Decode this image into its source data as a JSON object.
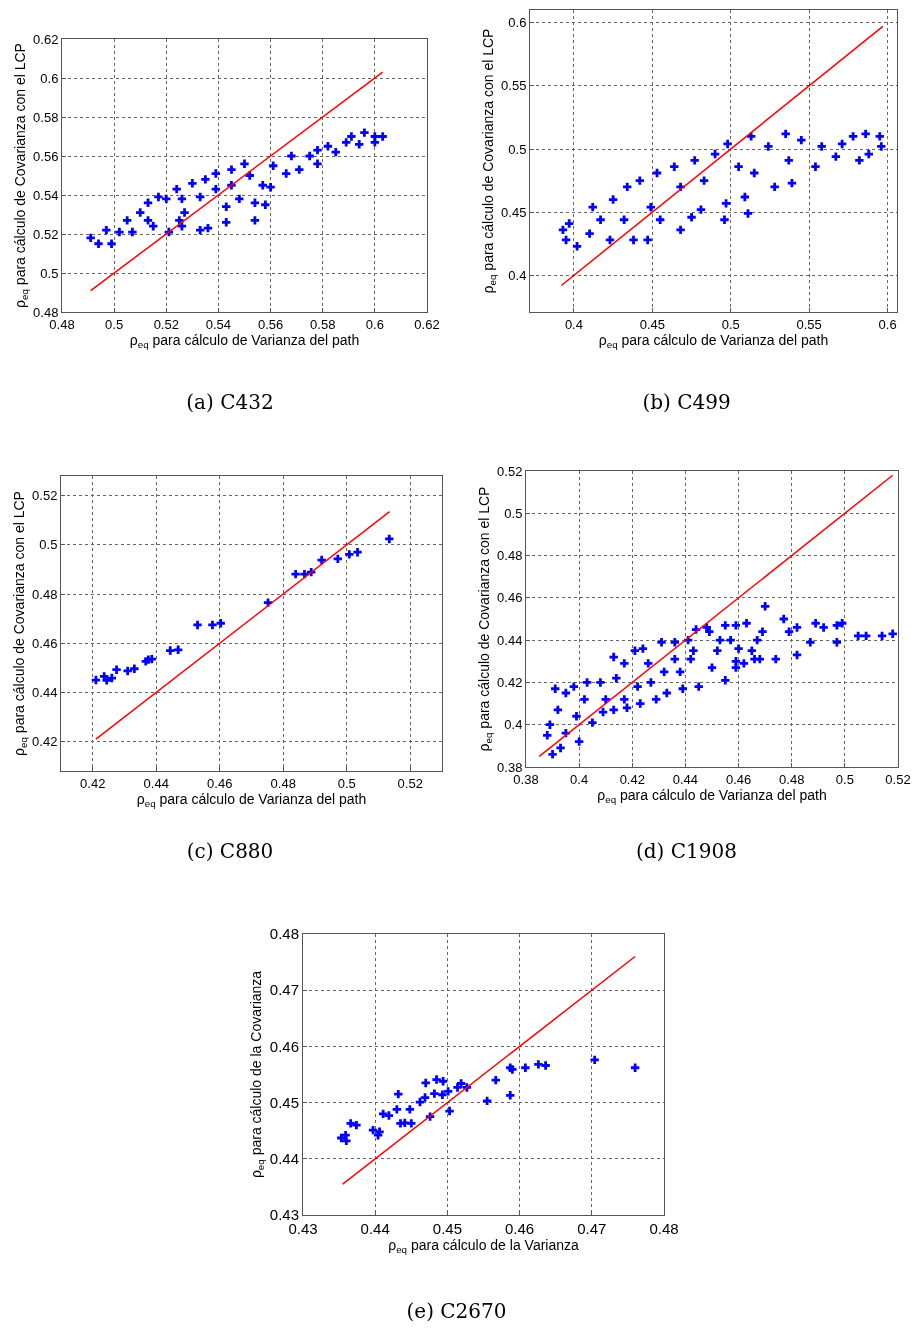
{
  "chart_data": [
    {
      "type": "scatter",
      "title": "(a) C432",
      "xlabel": "ρ$_{eq}$ para cálculo de Varianza del path",
      "ylabel": "ρ$_{eq}$ para cálculo de Covarianza con el LCP",
      "xlim": [
        0.48,
        0.62
      ],
      "ylim": [
        0.48,
        0.62
      ],
      "xticks": [
        0.48,
        0.5,
        0.52,
        0.54,
        0.56,
        0.58,
        0.6,
        0.62
      ],
      "yticks": [
        0.48,
        0.5,
        0.52,
        0.54,
        0.56,
        0.58,
        0.6,
        0.62
      ],
      "grid": true,
      "marker": "cross",
      "series": [
        {
          "color": "#0000ff",
          "x": [
            0.491,
            0.494,
            0.499,
            0.497,
            0.502,
            0.505,
            0.51,
            0.507,
            0.513,
            0.515,
            0.517,
            0.521,
            0.524,
            0.525,
            0.527,
            0.53,
            0.533,
            0.535,
            0.536,
            0.539,
            0.543,
            0.543,
            0.545,
            0.548,
            0.55,
            0.554,
            0.554,
            0.558,
            0.557,
            0.56,
            0.561,
            0.566,
            0.568,
            0.571,
            0.575,
            0.578,
            0.578,
            0.582,
            0.585,
            0.589,
            0.591,
            0.594,
            0.596,
            0.6,
            0.603,
            0.6,
            0.52,
            0.526,
            0.533,
            0.539,
            0.545,
            0.552,
            0.513,
            0.526
          ],
          "values": [
            0.518,
            0.515,
            0.515,
            0.522,
            0.521,
            0.527,
            0.531,
            0.521,
            0.536,
            0.524,
            0.539,
            0.521,
            0.543,
            0.527,
            0.531,
            0.546,
            0.522,
            0.548,
            0.523,
            0.551,
            0.534,
            0.526,
            0.553,
            0.538,
            0.556,
            0.527,
            0.536,
            0.535,
            0.545,
            0.544,
            0.555,
            0.551,
            0.56,
            0.553,
            0.56,
            0.556,
            0.563,
            0.565,
            0.562,
            0.567,
            0.57,
            0.566,
            0.572,
            0.57,
            0.57,
            0.567,
            0.538,
            0.538,
            0.539,
            0.543,
            0.545,
            0.55,
            0.527,
            0.524
          ]
        },
        {
          "type": "line",
          "color": "#ff0000",
          "marker": "none",
          "line_style": "solid",
          "x": [
            0.491,
            0.603
          ],
          "values": [
            0.491,
            0.603
          ]
        }
      ]
    },
    {
      "type": "scatter",
      "title": "(b) C499",
      "xlabel": "ρ$_{eq}$ para cálculo de Varianza del path",
      "ylabel": "ρ$_{eq}$ para cálculo de Covarianza con el LCP",
      "xlim": [
        0.372,
        0.606
      ],
      "ylim": [
        0.371,
        0.61
      ],
      "xticks": [
        0.4,
        0.45,
        0.5,
        0.55,
        0.6
      ],
      "yticks": [
        0.4,
        0.45,
        0.5,
        0.55,
        0.6
      ],
      "grid": true,
      "marker": "cross",
      "series": [
        {
          "color": "#0000ff",
          "x": [
            0.393,
            0.395,
            0.402,
            0.397,
            0.41,
            0.412,
            0.417,
            0.423,
            0.425,
            0.432,
            0.434,
            0.438,
            0.442,
            0.447,
            0.449,
            0.453,
            0.455,
            0.464,
            0.468,
            0.468,
            0.475,
            0.477,
            0.481,
            0.483,
            0.49,
            0.496,
            0.497,
            0.498,
            0.505,
            0.509,
            0.511,
            0.513,
            0.515,
            0.524,
            0.528,
            0.535,
            0.537,
            0.539,
            0.545,
            0.554,
            0.558,
            0.567,
            0.571,
            0.578,
            0.582,
            0.586,
            0.588,
            0.595,
            0.596
          ],
          "values": [
            0.436,
            0.428,
            0.423,
            0.441,
            0.433,
            0.454,
            0.444,
            0.428,
            0.46,
            0.444,
            0.47,
            0.428,
            0.475,
            0.428,
            0.454,
            0.481,
            0.444,
            0.486,
            0.436,
            0.47,
            0.446,
            0.491,
            0.452,
            0.475,
            0.496,
            0.444,
            0.457,
            0.504,
            0.486,
            0.462,
            0.449,
            0.51,
            0.481,
            0.502,
            0.47,
            0.512,
            0.491,
            0.473,
            0.507,
            0.486,
            0.502,
            0.494,
            0.504,
            0.51,
            0.491,
            0.512,
            0.496,
            0.51,
            0.502
          ]
        },
        {
          "type": "line",
          "color": "#ff0000",
          "marker": "none",
          "line_style": "solid",
          "x": [
            0.392,
            0.597
          ],
          "values": [
            0.392,
            0.597
          ]
        }
      ]
    },
    {
      "type": "scatter",
      "title": "(c) C880",
      "xlabel": "ρ$_{eq}$ para cálculo de Varianza del path",
      "ylabel": "ρ$_{eq}$ para cálculo de Covarianza con el LCP",
      "xlim": [
        0.41,
        0.53
      ],
      "ylim": [
        0.408,
        0.528
      ],
      "xticks": [
        0.42,
        0.44,
        0.46,
        0.48,
        0.5,
        0.52
      ],
      "yticks": [
        0.42,
        0.44,
        0.46,
        0.48,
        0.5,
        0.52
      ],
      "grid": true,
      "marker": "cross",
      "series": [
        {
          "color": "#0000ff",
          "x": [
            0.421,
            0.4236,
            0.4244,
            0.426,
            0.4275,
            0.431,
            0.4331,
            0.4367,
            0.4375,
            0.4386,
            0.4444,
            0.4469,
            0.453,
            0.4577,
            0.4603,
            0.4752,
            0.4839,
            0.4867,
            0.4888,
            0.4921,
            0.4972,
            0.5008,
            0.5034,
            0.5134
          ],
          "values": [
            0.445,
            0.4465,
            0.4449,
            0.4458,
            0.4492,
            0.4487,
            0.4496,
            0.4526,
            0.4533,
            0.4535,
            0.457,
            0.4573,
            0.4674,
            0.4674,
            0.4681,
            0.4765,
            0.4881,
            0.4881,
            0.4889,
            0.4938,
            0.4943,
            0.4961,
            0.497,
            0.5024
          ]
        },
        {
          "type": "line",
          "color": "#ff0000",
          "marker": "none",
          "line_style": "solid",
          "x": [
            0.421,
            0.5135
          ],
          "values": [
            0.421,
            0.5135
          ]
        }
      ]
    },
    {
      "type": "scatter",
      "title": "(d) C1908",
      "xlabel": "ρ$_{eq}$ para cálculo de Varianza del path",
      "ylabel": "ρ$_{eq}$ para cálculo de Covarianza con el LCP",
      "xlim": [
        0.38,
        0.52
      ],
      "ylim": [
        0.38,
        0.52
      ],
      "xticks": [
        0.38,
        0.4,
        0.42,
        0.44,
        0.46,
        0.48,
        0.5,
        0.52
      ],
      "yticks": [
        0.38,
        0.4,
        0.42,
        0.44,
        0.46,
        0.48,
        0.5,
        0.52
      ],
      "grid": true,
      "marker": "cross",
      "series": [
        {
          "color": "#0000ff",
          "x": [
            0.39,
            0.388,
            0.389,
            0.391,
            0.392,
            0.393,
            0.395,
            0.395,
            0.398,
            0.399,
            0.4,
            0.402,
            0.403,
            0.405,
            0.408,
            0.409,
            0.41,
            0.413,
            0.413,
            0.414,
            0.417,
            0.417,
            0.418,
            0.421,
            0.422,
            0.423,
            0.424,
            0.426,
            0.427,
            0.429,
            0.431,
            0.432,
            0.433,
            0.436,
            0.436,
            0.438,
            0.439,
            0.441,
            0.442,
            0.443,
            0.444,
            0.445,
            0.448,
            0.449,
            0.45,
            0.452,
            0.453,
            0.455,
            0.455,
            0.457,
            0.459,
            0.459,
            0.459,
            0.46,
            0.462,
            0.463,
            0.465,
            0.466,
            0.467,
            0.468,
            0.469,
            0.47,
            0.474,
            0.477,
            0.479,
            0.482,
            0.482,
            0.487,
            0.489,
            0.492,
            0.497,
            0.497,
            0.499,
            0.505,
            0.508,
            0.514,
            0.518
          ],
          "values": [
            0.386,
            0.395,
            0.4,
            0.417,
            0.407,
            0.389,
            0.396,
            0.415,
            0.418,
            0.404,
            0.392,
            0.412,
            0.42,
            0.401,
            0.42,
            0.406,
            0.412,
            0.407,
            0.432,
            0.422,
            0.412,
            0.429,
            0.408,
            0.435,
            0.418,
            0.41,
            0.436,
            0.429,
            0.42,
            0.412,
            0.439,
            0.425,
            0.415,
            0.431,
            0.439,
            0.425,
            0.417,
            0.44,
            0.431,
            0.435,
            0.445,
            0.418,
            0.446,
            0.444,
            0.427,
            0.435,
            0.44,
            0.447,
            0.421,
            0.44,
            0.43,
            0.427,
            0.447,
            0.436,
            0.429,
            0.448,
            0.435,
            0.431,
            0.44,
            0.431,
            0.444,
            0.456,
            0.431,
            0.45,
            0.444,
            0.433,
            0.446,
            0.439,
            0.448,
            0.446,
            0.439,
            0.447,
            0.448,
            0.442,
            0.442,
            0.442,
            0.443
          ]
        },
        {
          "type": "line",
          "color": "#ff0000",
          "marker": "none",
          "line_style": "solid",
          "x": [
            0.385,
            0.518
          ],
          "values": [
            0.385,
            0.518
          ]
        }
      ]
    },
    {
      "type": "scatter",
      "title": "(e) C2670",
      "xlabel": "ρ$_{eq}$ para cálculo de la Varianza",
      "ylabel": "ρ$_{eq}$ para cálculo de la Covarianza",
      "xlim": [
        0.43,
        0.48
      ],
      "ylim": [
        0.43,
        0.48
      ],
      "xticks": [
        0.43,
        0.44,
        0.45,
        0.46,
        0.47,
        0.48
      ],
      "yticks": [
        0.43,
        0.44,
        0.45,
        0.46,
        0.47,
        0.48
      ],
      "grid": true,
      "marker": "cross",
      "series": [
        {
          "color": "#0000ff",
          "x": [
            0.4353,
            0.4359,
            0.436,
            0.4366,
            0.4374,
            0.4397,
            0.4406,
            0.4404,
            0.4411,
            0.4419,
            0.443,
            0.4432,
            0.4435,
            0.4441,
            0.4448,
            0.445,
            0.4462,
            0.4469,
            0.447,
            0.4476,
            0.4482,
            0.4485,
            0.4493,
            0.4494,
            0.4501,
            0.4503,
            0.4514,
            0.4519,
            0.4527,
            0.4555,
            0.4567,
            0.4587,
            0.4587,
            0.459,
            0.4608,
            0.4626,
            0.4636,
            0.4704,
            0.476
          ],
          "values": [
            0.4437,
            0.4442,
            0.4432,
            0.4463,
            0.446,
            0.4451,
            0.4448,
            0.4442,
            0.448,
            0.4477,
            0.4488,
            0.4515,
            0.4463,
            0.4464,
            0.4488,
            0.4463,
            0.4501,
            0.4509,
            0.4535,
            0.4475,
            0.4516,
            0.4541,
            0.4514,
            0.4538,
            0.452,
            0.4485,
            0.4527,
            0.4534,
            0.4527,
            0.4503,
            0.454,
            0.4562,
            0.4513,
            0.4559,
            0.4562,
            0.4568,
            0.4566,
            0.4576,
            0.4562
          ]
        },
        {
          "type": "line",
          "color": "#ff0000",
          "marker": "none",
          "line_style": "solid",
          "x": [
            0.4355,
            0.476
          ],
          "values": [
            0.4355,
            0.476
          ]
        }
      ]
    }
  ]
}
